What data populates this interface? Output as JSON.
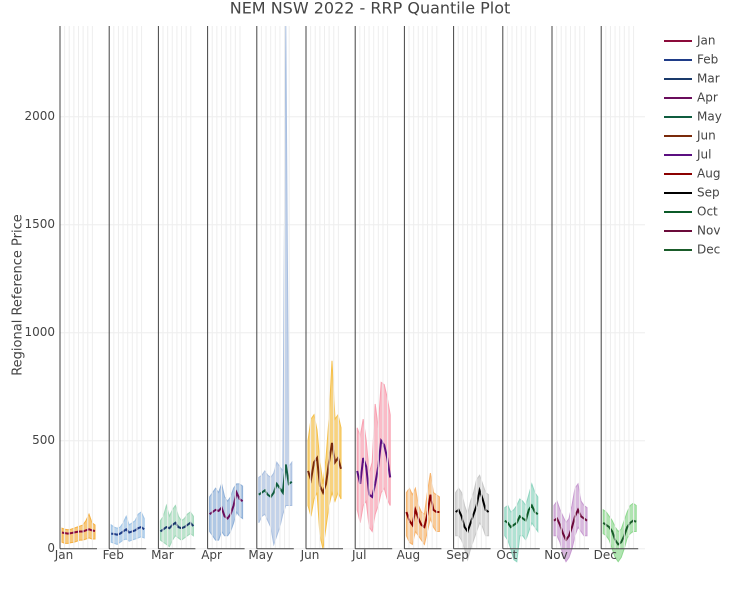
{
  "chart_data": {
    "type": "quantile",
    "title": "NEM NSW 2022 - RRP Quantile Plot",
    "y_label": "Regional Reference Price",
    "ylim": [
      -80,
      2420
    ],
    "yticks": [
      0,
      500,
      1000,
      1500,
      2000
    ],
    "grid": true,
    "legend": "top-right",
    "series": [
      {
        "name": "Jan",
        "color": "#8b0a3a",
        "band_color": "#f5b041",
        "median": [
          75,
          72,
          70,
          72,
          75,
          78,
          80,
          80,
          85,
          90,
          85,
          82
        ],
        "lower": [
          30,
          25,
          25,
          28,
          30,
          35,
          40,
          40,
          45,
          50,
          45,
          45
        ],
        "upper": [
          95,
          90,
          88,
          90,
          95,
          100,
          105,
          110,
          130,
          160,
          120,
          110
        ]
      },
      {
        "name": "Feb",
        "color": "#1f3c88",
        "band_color": "#9ec3e6",
        "median": [
          70,
          68,
          65,
          70,
          80,
          90,
          75,
          80,
          85,
          95,
          100,
          90
        ],
        "lower": [
          30,
          25,
          20,
          30,
          40,
          45,
          35,
          40,
          45,
          50,
          55,
          50
        ],
        "upper": [
          110,
          100,
          95,
          100,
          120,
          150,
          110,
          120,
          130,
          160,
          170,
          140
        ]
      },
      {
        "name": "Mar",
        "color": "#1a3a6b",
        "band_color": "#9fd8b8",
        "median": [
          80,
          90,
          100,
          95,
          110,
          120,
          100,
          95,
          100,
          110,
          120,
          105
        ],
        "lower": [
          40,
          30,
          20,
          10,
          40,
          60,
          50,
          40,
          50,
          60,
          70,
          60
        ],
        "upper": [
          130,
          150,
          200,
          150,
          180,
          200,
          150,
          130,
          140,
          160,
          170,
          150
        ]
      },
      {
        "name": "Apr",
        "color": "#6a0d5c",
        "band_color": "#8fb0d8",
        "median": [
          160,
          170,
          180,
          175,
          190,
          150,
          140,
          160,
          200,
          260,
          230,
          220
        ],
        "lower": [
          80,
          60,
          40,
          40,
          80,
          60,
          60,
          80,
          120,
          170,
          150,
          140
        ],
        "upper": [
          240,
          260,
          280,
          260,
          300,
          240,
          220,
          240,
          280,
          300,
          300,
          290
        ]
      },
      {
        "name": "May",
        "color": "#0f5c3f",
        "band_color": "#a9bfe0",
        "median": [
          250,
          260,
          270,
          250,
          240,
          260,
          300,
          280,
          260,
          390,
          300,
          310
        ],
        "lower": [
          120,
          150,
          160,
          130,
          100,
          20,
          60,
          100,
          160,
          200,
          200,
          200
        ],
        "upper": [
          330,
          340,
          360,
          340,
          330,
          350,
          400,
          380,
          360,
          2420,
          380,
          400
        ]
      },
      {
        "name": "Jun",
        "color": "#7a2a0a",
        "band_color": "#f5c04a",
        "median": [
          360,
          320,
          400,
          420,
          290,
          260,
          300,
          400,
          490,
          400,
          420,
          370
        ],
        "lower": [
          200,
          150,
          230,
          260,
          60,
          0,
          100,
          200,
          260,
          220,
          260,
          230
        ],
        "upper": [
          500,
          600,
          620,
          550,
          400,
          300,
          420,
          600,
          870,
          600,
          620,
          560
        ]
      },
      {
        "name": "Jul",
        "color": "#5b0f80",
        "band_color": "#f8a0b0",
        "median": [
          360,
          300,
          420,
          380,
          250,
          240,
          300,
          380,
          500,
          480,
          420,
          330
        ],
        "lower": [
          180,
          120,
          200,
          220,
          100,
          80,
          160,
          200,
          260,
          280,
          230,
          200
        ],
        "upper": [
          560,
          520,
          600,
          500,
          350,
          400,
          670,
          560,
          770,
          760,
          700,
          620
        ]
      },
      {
        "name": "Aug",
        "color": "#8b0000",
        "band_color": "#f7b36b",
        "median": [
          170,
          130,
          110,
          180,
          140,
          110,
          100,
          160,
          250,
          180,
          170,
          170
        ],
        "lower": [
          60,
          30,
          20,
          80,
          60,
          40,
          20,
          80,
          140,
          100,
          80,
          80
        ],
        "upper": [
          260,
          280,
          250,
          280,
          200,
          170,
          160,
          260,
          350,
          260,
          250,
          240
        ]
      },
      {
        "name": "Sep",
        "color": "#000000",
        "band_color": "#c8c8c8",
        "median": [
          170,
          180,
          150,
          100,
          80,
          120,
          160,
          200,
          270,
          230,
          180,
          170
        ],
        "lower": [
          60,
          60,
          40,
          0,
          -50,
          0,
          40,
          80,
          120,
          100,
          60,
          60
        ],
        "upper": [
          260,
          280,
          260,
          200,
          160,
          220,
          260,
          320,
          340,
          300,
          260,
          250
        ]
      },
      {
        "name": "Oct",
        "color": "#0b5a28",
        "band_color": "#8fd5c0",
        "median": [
          130,
          120,
          100,
          110,
          120,
          150,
          140,
          130,
          180,
          200,
          170,
          160
        ],
        "lower": [
          60,
          40,
          0,
          -50,
          -60,
          60,
          60,
          40,
          80,
          120,
          100,
          80
        ],
        "upper": [
          190,
          200,
          170,
          180,
          200,
          230,
          220,
          200,
          250,
          300,
          260,
          240
        ]
      },
      {
        "name": "Nov",
        "color": "#6b0a3a",
        "band_color": "#c79ad0",
        "median": [
          130,
          140,
          110,
          70,
          40,
          60,
          100,
          150,
          180,
          150,
          140,
          130
        ],
        "lower": [
          60,
          60,
          30,
          -30,
          -60,
          -40,
          0,
          60,
          100,
          80,
          60,
          60
        ],
        "upper": [
          200,
          220,
          180,
          150,
          120,
          140,
          200,
          280,
          300,
          220,
          200,
          190
        ]
      },
      {
        "name": "Dec",
        "color": "#1a5c2a",
        "band_color": "#8fd890",
        "median": [
          120,
          110,
          100,
          80,
          40,
          20,
          30,
          60,
          100,
          120,
          130,
          125
        ],
        "lower": [
          70,
          60,
          40,
          0,
          -40,
          -60,
          -40,
          0,
          50,
          70,
          80,
          80
        ],
        "upper": [
          180,
          170,
          150,
          130,
          100,
          80,
          90,
          130,
          170,
          200,
          210,
          200
        ]
      }
    ]
  }
}
